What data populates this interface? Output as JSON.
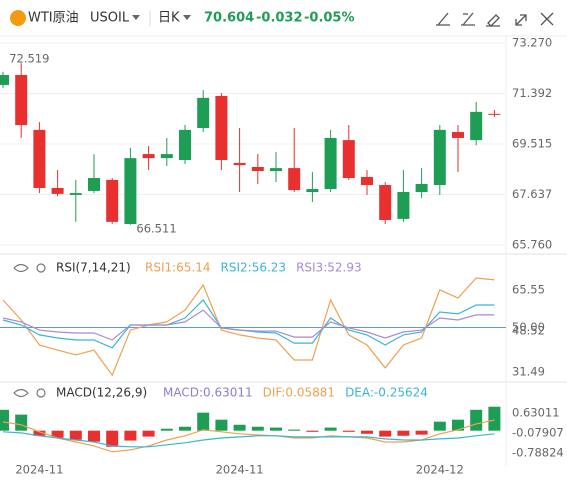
{
  "header": {
    "symbol": "WTI原油",
    "code": "USOIL",
    "period": "日K",
    "price": 70.604,
    "change": -0.032,
    "change_pct": "-0.05%"
  },
  "chart_data": [
    {
      "type": "candlestick",
      "categories": [
        null,
        null,
        "2024-11",
        null,
        null,
        null,
        null,
        null,
        null,
        null,
        null,
        null,
        null,
        "2024-11",
        null,
        null,
        null,
        null,
        null,
        null,
        null,
        null,
        null,
        null,
        "2024-12",
        null,
        null,
        null
      ],
      "open": [
        71.71,
        72.08,
        70.04,
        67.88,
        67.62,
        67.77,
        68.18,
        66.54,
        69.14,
        68.99,
        68.92,
        70.11,
        71.3,
        68.81,
        68.66,
        68.51,
        68.62,
        67.73,
        67.84,
        69.66,
        68.29,
        67.99,
        66.73,
        67.73,
        67.99,
        69.96,
        69.66,
        70.636
      ],
      "close": [
        72.08,
        70.22,
        67.88,
        67.66,
        67.69,
        68.25,
        66.62,
        68.99,
        68.99,
        69.14,
        70.04,
        71.23,
        68.92,
        68.73,
        68.51,
        68.62,
        67.8,
        67.84,
        69.74,
        68.25,
        67.99,
        66.69,
        67.73,
        68.03,
        70.04,
        69.74,
        70.71,
        70.604
      ],
      "high": [
        72.2,
        72.519,
        70.33,
        68.55,
        68.18,
        69.14,
        68.25,
        69.37,
        69.44,
        69.74,
        70.22,
        71.52,
        71.41,
        70.11,
        69.14,
        69.22,
        70.11,
        68.47,
        70.04,
        70.22,
        68.55,
        68.1,
        68.55,
        68.62,
        70.22,
        70.22,
        71.08,
        70.78
      ],
      "low": [
        71.6,
        69.74,
        67.69,
        67.58,
        66.62,
        67.69,
        66.54,
        66.511,
        68.55,
        68.7,
        68.77,
        69.96,
        68.55,
        67.73,
        68.03,
        68.1,
        67.73,
        67.36,
        67.73,
        68.18,
        67.62,
        66.54,
        66.62,
        67.51,
        67.62,
        68.47,
        69.47,
        70.52
      ],
      "up_color": "#1e9e55",
      "down_color": "#e8302f",
      "max_label": "72.519",
      "min_label": "66.511",
      "ylim": [
        65.76,
        73.27
      ],
      "yticks": [
        {
          "value": 73.27,
          "label": "73.270"
        },
        71.392,
        69.515,
        67.637,
        {
          "value": 65.76,
          "label": "65.760"
        }
      ],
      "grid": true
    },
    {
      "type": "line",
      "title": "RSI(7,14,21)",
      "series": [
        {
          "name": "RSI1:65.14",
          "color": "#f0a050",
          "values": [
            61.4,
            53.1,
            42.7,
            40.6,
            38.6,
            40.6,
            30.2,
            48.9,
            51.0,
            52.3,
            57.2,
            67.6,
            48.9,
            46.9,
            45.6,
            44.8,
            36.5,
            36.5,
            61.4,
            46.9,
            42.7,
            33.2,
            42.7,
            45.6,
            65.6,
            62.2,
            70.5,
            69.7
          ]
        },
        {
          "name": "RSI2:56.23",
          "color": "#3bb5d6",
          "values": [
            53.1,
            51.0,
            46.9,
            45.6,
            44.8,
            44.8,
            41.5,
            51.0,
            51.0,
            51.0,
            53.9,
            61.4,
            49.8,
            48.9,
            48.1,
            47.7,
            43.5,
            43.5,
            53.9,
            48.9,
            46.9,
            42.7,
            46.9,
            48.1,
            56.4,
            55.6,
            59.3,
            59.3
          ]
        },
        {
          "name": "RSI3:52.93",
          "color": "#a98bd0",
          "values": [
            53.9,
            52.3,
            48.9,
            48.1,
            47.7,
            47.7,
            44.8,
            51.0,
            51.0,
            51.0,
            52.3,
            57.2,
            49.8,
            48.9,
            48.5,
            48.5,
            46.0,
            46.0,
            52.3,
            49.8,
            48.1,
            45.6,
            48.1,
            48.9,
            53.9,
            53.1,
            55.2,
            55.2
          ]
        }
      ],
      "ylim": [
        28.2,
        78.8
      ],
      "yticks": [
        65.55,
        {
          "value": 50,
          "label": "50.00"
        },
        48.52,
        31.49
      ],
      "reference_line": {
        "value": 50,
        "color": "#5b9bd5"
      }
    },
    {
      "type": "macd",
      "title": "MACD(12,26,9)",
      "histogram": {
        "name": "MACD:0.63011",
        "up_color": "#1e9e55",
        "down_color": "#e8302f",
        "values": [
          0.74,
          0.57,
          -0.18,
          -0.25,
          -0.32,
          -0.39,
          -0.57,
          -0.35,
          -0.21,
          0.07,
          0.14,
          0.64,
          0.39,
          0.21,
          0.14,
          0.11,
          0.04,
          -0.04,
          0.11,
          -0.04,
          -0.11,
          -0.21,
          -0.18,
          -0.14,
          0.32,
          0.39,
          0.74,
          0.85
        ]
      },
      "series": [
        {
          "name": "DIF:0.05881",
          "color": "#f0a050",
          "values": [
            0.31,
            0.21,
            -0.04,
            -0.26,
            -0.4,
            -0.54,
            -0.75,
            -0.68,
            -0.54,
            -0.33,
            -0.18,
            0.03,
            -0.04,
            -0.11,
            -0.15,
            -0.18,
            -0.26,
            -0.26,
            -0.18,
            -0.22,
            -0.26,
            -0.4,
            -0.4,
            -0.33,
            -0.11,
            0.03,
            0.24,
            0.38
          ]
        },
        {
          "name": "DEA:-0.25624",
          "color": "#3bb5d6",
          "values": [
            -0.04,
            -0.08,
            -0.18,
            -0.26,
            -0.33,
            -0.4,
            -0.54,
            -0.57,
            -0.57,
            -0.5,
            -0.43,
            -0.33,
            -0.26,
            -0.22,
            -0.18,
            -0.18,
            -0.22,
            -0.22,
            -0.22,
            -0.22,
            -0.22,
            -0.29,
            -0.33,
            -0.33,
            -0.29,
            -0.26,
            -0.18,
            -0.11
          ]
        }
      ],
      "ylim": [
        -1.11,
        1.62
      ],
      "yticks": [
        0.63011,
        -0.07907,
        -0.78824
      ]
    }
  ]
}
